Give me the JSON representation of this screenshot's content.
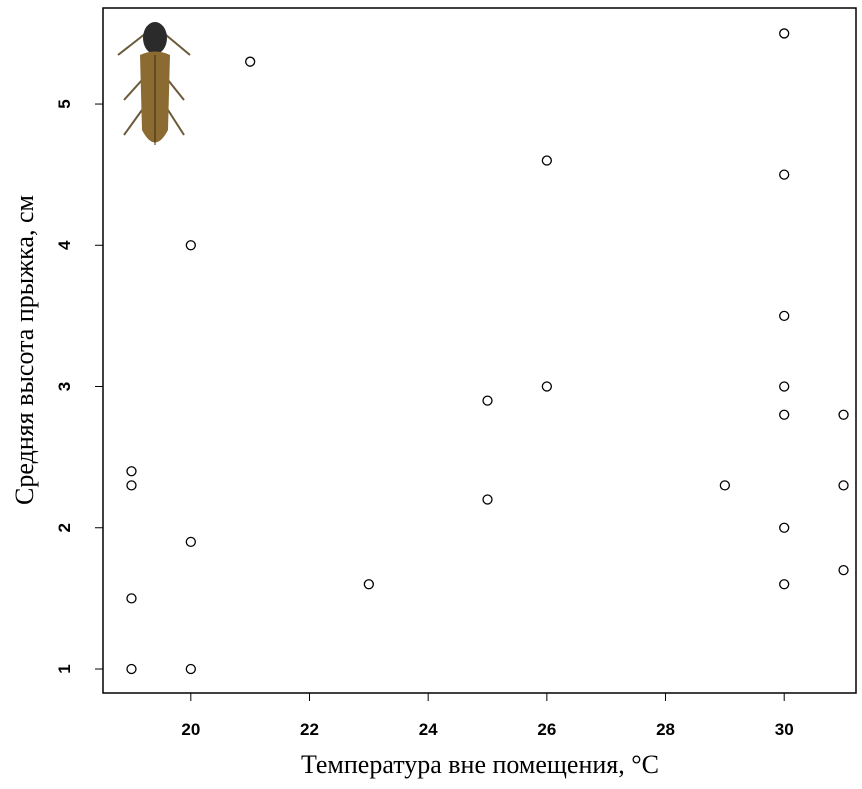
{
  "chart_data": {
    "type": "scatter",
    "x_label": "Температура вне помещения, °C",
    "y_label": "Средняя высота прыжка, см",
    "series": [
      {
        "color": "#000000",
        "x": [
          19,
          19,
          19,
          19,
          20,
          20,
          20,
          21,
          23,
          25,
          25,
          26,
          26,
          29,
          30,
          30,
          30,
          30,
          30,
          30,
          30,
          31,
          31,
          31
        ],
        "values": [
          1.0,
          1.5,
          2.3,
          2.4,
          1.0,
          1.9,
          4.0,
          5.3,
          1.6,
          2.2,
          2.9,
          3.0,
          4.6,
          2.3,
          5.5,
          4.5,
          3.5,
          3.0,
          2.8,
          2.0,
          1.6,
          2.8,
          2.3,
          1.7
        ]
      }
    ],
    "xlim": [
      18.52,
      31.21
    ],
    "ylim": [
      0.83,
      5.68
    ],
    "xticks": [
      20,
      22,
      24,
      26,
      28,
      30
    ],
    "yticks": [
      1,
      2,
      3,
      4,
      5
    ]
  }
}
